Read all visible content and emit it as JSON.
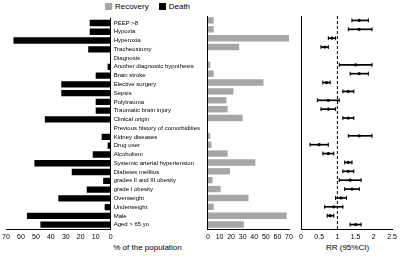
{
  "chart_data": [
    {
      "type": "bar",
      "orientation": "horizontal",
      "grid": false,
      "legend": "top",
      "xlabel": "% of the population",
      "categories": [
        "PEEP >8",
        "Hypoxia",
        "Hyperoxia",
        "Tracheostomy",
        "Diagnosis",
        "Another diagnostic hypothesis",
        "Brain stroke",
        "Elective surgery",
        "Sepsis",
        "Polytrauma",
        "Traumatic brain injury",
        "Clinical origin",
        "Previous history of comorbidities",
        "Kidney diseases",
        "Drug user",
        "Alcoholism",
        "Systemic arterial hypertension",
        "Diabetes mellitus",
        "grades II and III obesity",
        "grade I obesity",
        "Overweight",
        "Underweight",
        "Male",
        "Aged > 65 yo"
      ],
      "series": [
        {
          "name": "Recovery",
          "color": "#a6a6a6",
          "values": [
            5,
            5,
            70,
            27,
            null,
            2,
            5,
            48,
            22,
            16,
            17,
            30,
            null,
            2,
            3,
            17,
            41,
            19,
            4,
            11,
            35,
            5,
            68,
            31
          ]
        },
        {
          "name": "Death",
          "color": "#000000",
          "values": [
            14,
            14,
            65,
            15,
            null,
            2,
            10,
            33,
            33,
            10,
            10,
            44,
            null,
            6,
            2,
            12,
            51,
            26,
            5,
            16,
            35,
            4,
            56,
            47
          ]
        }
      ],
      "xlim": [
        0,
        70
      ],
      "xticks": [
        0,
        10,
        20,
        30,
        40,
        50,
        60,
        70
      ]
    },
    {
      "type": "forest",
      "orientation": "horizontal",
      "grid": false,
      "tick_labels": "x",
      "xlabel": "RR (95%CI)",
      "color": "#000000",
      "categories": [
        "PEEP >8",
        "Hypoxia",
        "Hyperoxia",
        "Tracheostomy",
        "Diagnosis",
        "Another diagnostic hypothesis",
        "Brain stroke",
        "Elective surgery",
        "Sepsis",
        "Polytrauma",
        "Traumatic brain injury",
        "Clinical origin",
        "Previous history of comorbidities",
        "Kidney diseases",
        "Drug user",
        "Alcoholism",
        "Systemic arterial hypertension",
        "Diabetes mellitus",
        "grades II and III obesity",
        "grade I obesity",
        "Overweight",
        "Underweight",
        "Male",
        "Aged > 65 yo"
      ],
      "values": [
        1.6,
        1.6,
        0.85,
        0.65,
        null,
        1.5,
        1.6,
        0.7,
        1.3,
        0.75,
        0.75,
        1.3,
        null,
        1.6,
        0.5,
        0.75,
        1.3,
        1.3,
        1.35,
        1.4,
        1.1,
        0.9,
        0.8,
        1.5
      ],
      "ci_low": [
        1.4,
        1.3,
        0.75,
        0.55,
        null,
        1.05,
        1.35,
        0.6,
        1.15,
        0.45,
        0.55,
        1.15,
        null,
        1.3,
        0.25,
        0.6,
        1.2,
        1.15,
        1.05,
        1.2,
        0.95,
        0.65,
        0.72,
        1.35
      ],
      "ci_high": [
        1.85,
        1.95,
        0.95,
        0.75,
        null,
        1.95,
        1.85,
        0.8,
        1.45,
        1.05,
        0.95,
        1.45,
        null,
        1.95,
        0.75,
        0.9,
        1.4,
        1.45,
        1.65,
        1.6,
        1.25,
        1.15,
        0.9,
        1.65
      ],
      "reference_line": 1,
      "xlim": [
        0,
        2.5
      ],
      "xticks": [
        0,
        0.5,
        1,
        1.5,
        2,
        2.5
      ]
    }
  ]
}
